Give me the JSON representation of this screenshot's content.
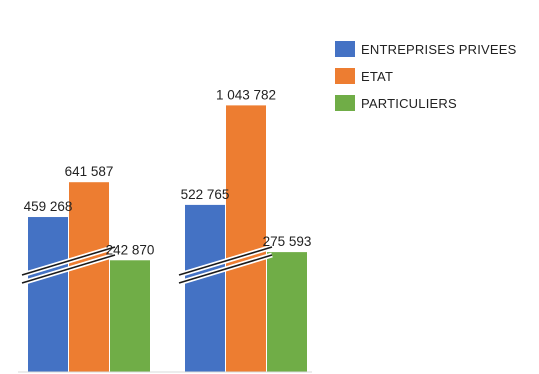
{
  "chart_data": {
    "type": "bar",
    "title": "",
    "xlabel": "",
    "ylabel": "",
    "axis_break": true,
    "categories": [
      "",
      ""
    ],
    "series": [
      {
        "name": "ENTREPRISES PRIVEES",
        "color": "#4472C4",
        "values": [
          459268,
          522765
        ],
        "labels": [
          "459 268",
          "522 765"
        ]
      },
      {
        "name": "ETAT",
        "color": "#ED7D31",
        "values": [
          641587,
          1043782
        ],
        "labels": [
          "641 587",
          "1 043 782"
        ]
      },
      {
        "name": "PARTICULIERS",
        "color": "#70AD47",
        "values": [
          242870,
          275593
        ],
        "labels": [
          "242 870",
          "275 593"
        ]
      }
    ],
    "legend_position": "top-right",
    "grid": false
  }
}
